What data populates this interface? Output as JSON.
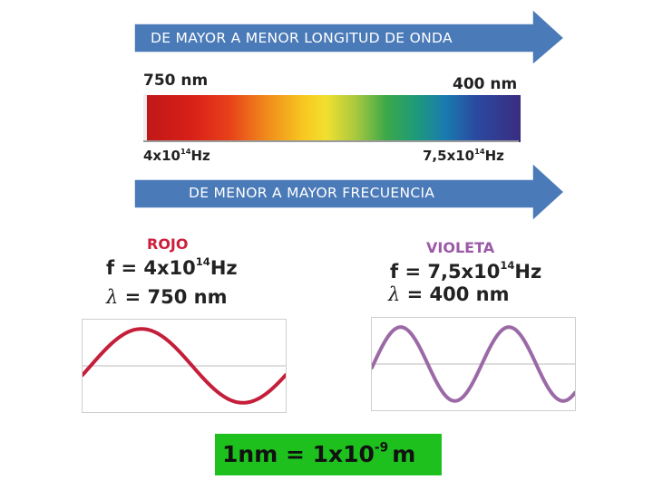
{
  "top_arrow": {
    "label": "DE MAYOR A MENOR LONGITUD DE ONDA"
  },
  "bottom_arrow": {
    "label": "DE MENOR A MAYOR FRECUENCIA"
  },
  "spectrum": {
    "left_wavelength": "750 nm",
    "right_wavelength": "400 nm",
    "left_freq_base": "4x10",
    "left_freq_exp": "14",
    "left_freq_unit": "Hz",
    "right_freq_base": "7,5x10",
    "right_freq_exp": "14",
    "right_freq_unit": "Hz"
  },
  "red_wave": {
    "title": "ROJO",
    "title_color": "#cc1f3c",
    "f_prefix": "f = 4x10",
    "f_exp": "14",
    "f_unit": "Hz",
    "lambda_symbol": "λ",
    "lambda_value": "= 750 nm",
    "wave_color": "#c41e3a",
    "cycles": 1.0
  },
  "violet_wave": {
    "title": "VIOLETA",
    "title_color": "#9b59a8",
    "f_prefix": "f = 7,5x10",
    "f_exp": "14",
    "f_unit": "Hz",
    "lambda_symbol": "λ",
    "lambda_value": "= 400 nm",
    "wave_color": "#9b6aa6",
    "cycles": 1.875
  },
  "conversion": {
    "left": "1nm = 1x10",
    "exp": "-9",
    "unit": "m",
    "background": "#1ec01e"
  },
  "arrow_color": "#4a7ab8"
}
